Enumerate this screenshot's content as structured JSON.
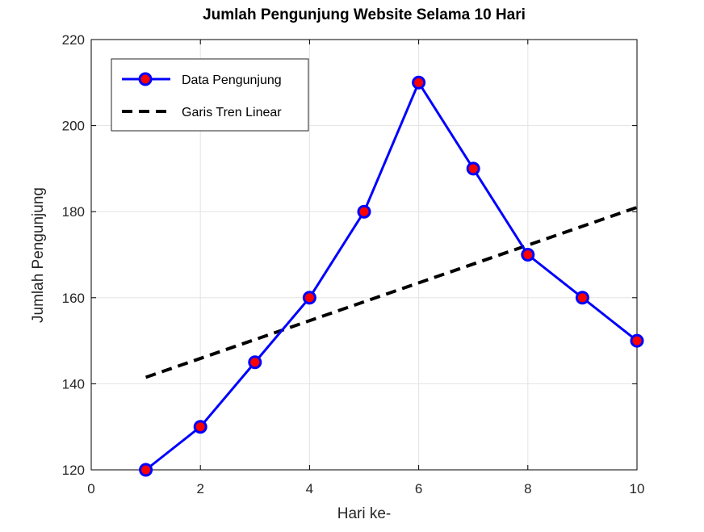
{
  "chart_data": {
    "type": "line",
    "title": "Jumlah Pengunjung Website Selama 10 Hari",
    "xlabel": "Hari ke-",
    "ylabel": "Jumlah Pengunjung",
    "xlim": [
      0,
      10
    ],
    "ylim": [
      120,
      220
    ],
    "xticks": [
      0,
      2,
      4,
      6,
      8,
      10
    ],
    "yticks": [
      120,
      140,
      160,
      180,
      200,
      220
    ],
    "grid": true,
    "legend_position": "top-left",
    "series": [
      {
        "name": "Data Pengunjung",
        "style": "solid line with circle markers",
        "line_color": "#0000ff",
        "marker_fill": "#ff0000",
        "x": [
          1,
          2,
          3,
          4,
          5,
          6,
          7,
          8,
          9,
          10
        ],
        "y": [
          120,
          130,
          145,
          160,
          180,
          210,
          190,
          170,
          160,
          150
        ]
      },
      {
        "name": "Garis Tren Linear",
        "style": "dashed line",
        "line_color": "#000000",
        "x": [
          1,
          10
        ],
        "y": [
          141.5,
          181.0
        ]
      }
    ]
  }
}
